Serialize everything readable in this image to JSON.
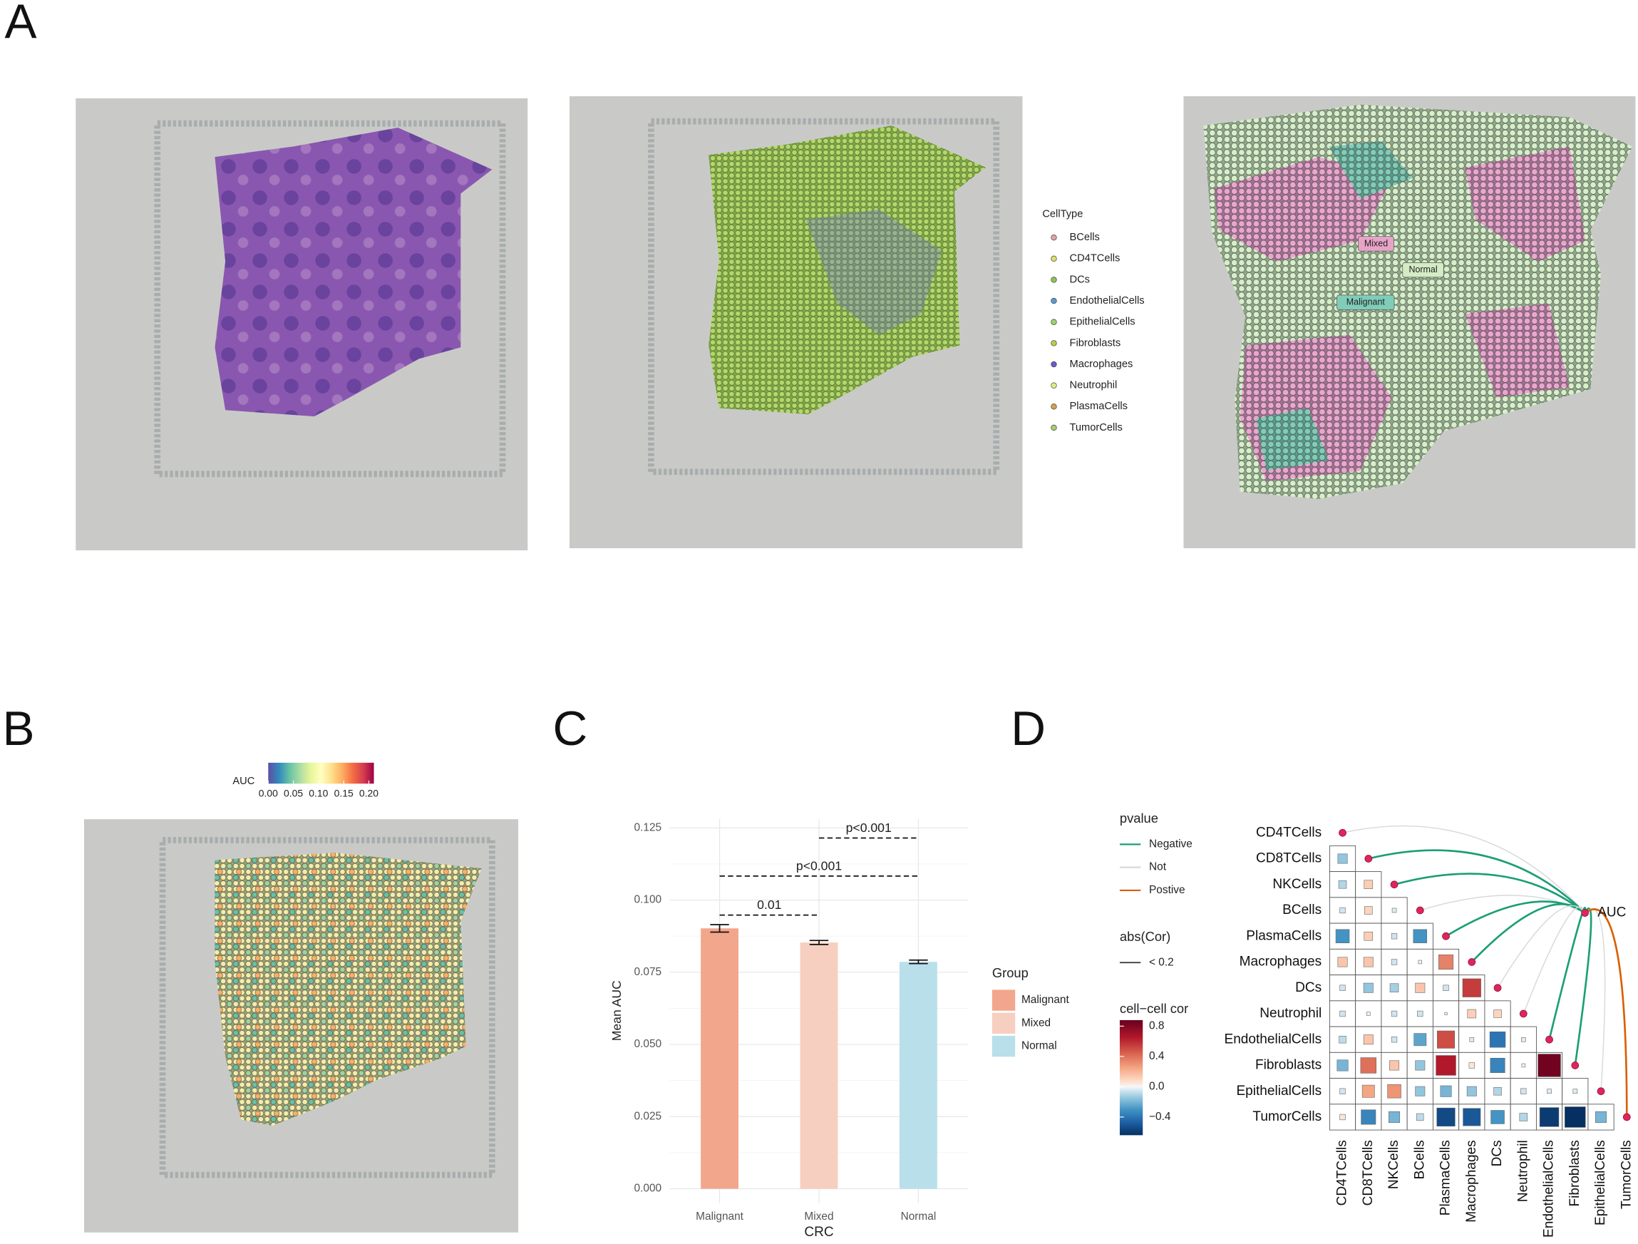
{
  "panel_labels": [
    "A",
    "B",
    "C",
    "D"
  ],
  "panel_a": {
    "legend_title": "CellType",
    "legend": [
      {
        "name": "BCells",
        "color": "#e3a3a6"
      },
      {
        "name": "CD4TCells",
        "color": "#d9e36a"
      },
      {
        "name": "DCs",
        "color": "#8ec456"
      },
      {
        "name": "EndothelialCells",
        "color": "#5a9bd5"
      },
      {
        "name": "EpithelialCells",
        "color": "#9fd46c"
      },
      {
        "name": "Fibroblasts",
        "color": "#b9cf4b"
      },
      {
        "name": "Macrophages",
        "color": "#6a5acd"
      },
      {
        "name": "Neutrophil",
        "color": "#e4ec84"
      },
      {
        "name": "PlasmaCells",
        "color": "#d4a24a"
      },
      {
        "name": "TumorCells",
        "color": "#a8d06c"
      }
    ],
    "region_labels": [
      {
        "text": "Mixed",
        "color": "#e8a3c8"
      },
      {
        "text": "Normal",
        "color": "#d3ecc4"
      },
      {
        "text": "Malignant",
        "color": "#7fcdb8"
      }
    ]
  },
  "chart_data": [
    {
      "type": "colorbar",
      "title": "AUC",
      "xlim": [
        0,
        0.21
      ],
      "xticks": [
        {
          "value": 0,
          "label": "0.00"
        },
        {
          "value": 0.05,
          "label": "0.05"
        },
        {
          "value": 0.1,
          "label": "0.10"
        },
        {
          "value": 0.15,
          "label": "0.15"
        },
        {
          "value": 0.2,
          "label": "0.20"
        }
      ],
      "colors": [
        "#5e4fa2",
        "#3288bd",
        "#66c2a5",
        "#abdda4",
        "#e6f598",
        "#ffffbf",
        "#fee08b",
        "#fdae61",
        "#f46d43",
        "#d53e4f",
        "#9e0142"
      ]
    },
    {
      "type": "bar",
      "x_label": "CRC",
      "y_label": "Mean AUC",
      "legend_title": "Group",
      "categories": [
        "Malignant",
        "Mixed",
        "Normal"
      ],
      "values": [
        0.0902,
        0.0853,
        0.0786
      ],
      "errors": [
        0.0013,
        0.0007,
        0.0006
      ],
      "colors": [
        "#f2a68c",
        "#f7cfc0",
        "#b9dfea"
      ],
      "ylim": [
        -0.005,
        0.128
      ],
      "yticks": [
        {
          "value": 0,
          "label": "0.000"
        },
        {
          "value": 0.025,
          "label": "0.025"
        },
        {
          "value": 0.05,
          "label": "0.050"
        },
        {
          "value": 0.075,
          "label": "0.075"
        },
        {
          "value": 0.1,
          "label": "0.100"
        },
        {
          "value": 0.125,
          "label": "0.125"
        }
      ],
      "grid": true,
      "comparisons": [
        {
          "between": [
            "Malignant",
            "Mixed"
          ],
          "y": 0.0948,
          "label": "0.01"
        },
        {
          "between": [
            "Malignant",
            "Normal"
          ],
          "y": 0.1083,
          "label": "p<0.001"
        },
        {
          "between": [
            "Mixed",
            "Normal"
          ],
          "y": 0.1215,
          "label": "p<0.001"
        }
      ]
    },
    {
      "type": "corrplot",
      "categories": [
        "CD4TCells",
        "CD8TCells",
        "NKCells",
        "BCells",
        "PlasmaCells",
        "Macrophages",
        "DCs",
        "Neutrophil",
        "EndothelialCells",
        "Fibroblasts",
        "EpithelialCells",
        "TumorCells"
      ],
      "matrix": [
        [],
        [
          -0.15
        ],
        [
          -0.1,
          0.12
        ],
        [
          -0.05,
          0.1,
          -0.03
        ],
        [
          -0.3,
          0.12,
          -0.05,
          -0.3
        ],
        [
          0.15,
          0.15,
          -0.05,
          0.02,
          0.35
        ],
        [
          -0.05,
          -0.15,
          -0.12,
          0.15,
          -0.05,
          0.55
        ],
        [
          -0.05,
          0.02,
          -0.05,
          -0.05,
          0.01,
          0.12,
          0.1
        ],
        [
          -0.08,
          0.15,
          -0.05,
          -0.25,
          0.5,
          -0.03,
          -0.4,
          -0.03
        ],
        [
          -0.2,
          0.4,
          0.15,
          -0.15,
          0.65,
          0.05,
          -0.35,
          0.02,
          0.85
        ],
        [
          -0.05,
          0.25,
          0.3,
          -0.15,
          -0.2,
          -0.15,
          -0.1,
          -0.05,
          -0.03,
          -0.03
        ],
        [
          0.05,
          -0.35,
          -0.2,
          -0.08,
          -0.55,
          -0.5,
          -0.3,
          -0.1,
          -0.6,
          -0.7,
          -0.2
        ]
      ],
      "target": "AUC",
      "links": [
        "Not",
        "Negative",
        "Negative",
        "Not",
        "Negative",
        "Negative",
        "Not",
        "Not",
        "Negative",
        "Negative",
        "Not",
        "Postive"
      ],
      "link_legend": {
        "title": "pvalue",
        "items": [
          {
            "name": "Negative",
            "color": "#1b9e77"
          },
          {
            "name": "Not",
            "color": "#d9d9d9"
          },
          {
            "name": "Postive",
            "color": "#d95f02"
          }
        ]
      },
      "size_legend": {
        "title": "abs(Cor)",
        "label": "< 0.2"
      },
      "colorbar_title": "cell−cell cor",
      "clim": [
        -0.64,
        0.88
      ],
      "cticks": [
        {
          "value": -0.4,
          "label": "−0.4"
        },
        {
          "value": 0,
          "label": "0.0"
        },
        0.4,
        0.8
      ],
      "colorscale": [
        {
          "value": -0.64,
          "color": "#053061"
        },
        {
          "value": -0.45,
          "color": "#2166ac"
        },
        {
          "value": -0.3,
          "color": "#4393c3"
        },
        {
          "value": -0.15,
          "color": "#92c5de"
        },
        {
          "value": -0.05,
          "color": "#d1e5f0"
        },
        {
          "value": 0,
          "color": "#f7f7f7"
        },
        {
          "value": 0.08,
          "color": "#fddbc7"
        },
        {
          "value": 0.25,
          "color": "#f4a582"
        },
        {
          "value": 0.45,
          "color": "#d6604d"
        },
        {
          "value": 0.65,
          "color": "#b2182b"
        },
        {
          "value": 0.88,
          "color": "#67001f"
        }
      ]
    }
  ]
}
